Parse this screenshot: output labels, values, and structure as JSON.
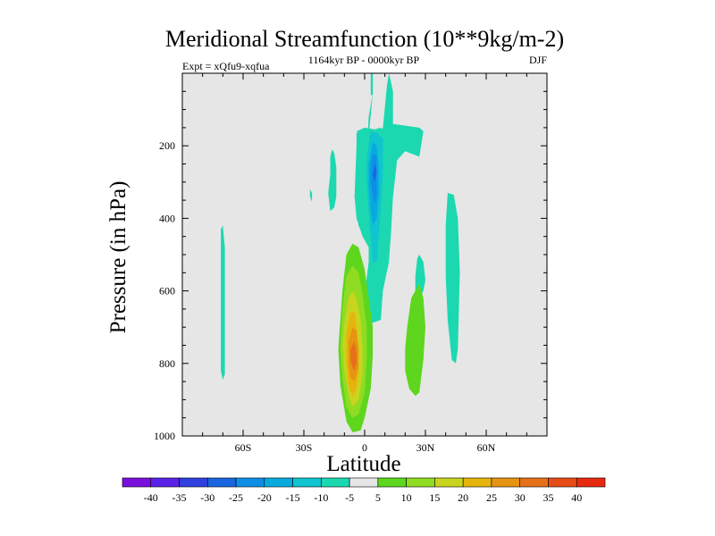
{
  "chart_data": {
    "type": "heatmap",
    "title": "Meridional Streamfunction (10**9kg/m-2)",
    "subtitle_left": "Expt = xQfu9-xqfua",
    "subtitle_center": "1164kyr BP - 0000kyr BP",
    "subtitle_right": "DJF",
    "xlabel": "Latitude",
    "ylabel": "Pressure (in hPa)",
    "xlim": [
      -90,
      90
    ],
    "ylim": [
      1000,
      0
    ],
    "x_ticks": [
      {
        "value": -60,
        "label": "60S"
      },
      {
        "value": -30,
        "label": "30S"
      },
      {
        "value": 0,
        "label": "0"
      },
      {
        "value": 30,
        "label": "30N"
      },
      {
        "value": 60,
        "label": "60N"
      }
    ],
    "y_ticks": [
      {
        "value": 200,
        "label": "200"
      },
      {
        "value": 400,
        "label": "400"
      },
      {
        "value": 600,
        "label": "600"
      },
      {
        "value": 800,
        "label": "800"
      },
      {
        "value": 1000,
        "label": "1000"
      }
    ],
    "background_color": "#e6e6e6",
    "colorbar": {
      "labels": [
        "-40",
        "-35",
        "-30",
        "-25",
        "-20",
        "-15",
        "-10",
        "-5",
        "5",
        "10",
        "15",
        "20",
        "25",
        "30",
        "35",
        "40"
      ],
      "colors": [
        "#7a10dc",
        "#5a22e6",
        "#2f40dc",
        "#1a66e0",
        "#0f8ee6",
        "#08aade",
        "#10c4d0",
        "#1cd8b0",
        "#e6e6e6",
        "#5ed61e",
        "#90dc22",
        "#c8d41e",
        "#e6b40c",
        "#e69412",
        "#e6701a",
        "#e64c18",
        "#e62a10"
      ]
    },
    "contour_regions": [
      {
        "level": -5,
        "points": [
          [
            4,
            55
          ],
          [
            2,
            120
          ],
          [
            1,
            230
          ],
          [
            2,
            400
          ],
          [
            2,
            520
          ],
          [
            0,
            610
          ],
          [
            3,
            690
          ],
          [
            8,
            680
          ],
          [
            9,
            600
          ],
          [
            12,
            520
          ],
          [
            13,
            440
          ],
          [
            14,
            340
          ],
          [
            16,
            240
          ],
          [
            20,
            215
          ],
          [
            27,
            230
          ],
          [
            29,
            160
          ],
          [
            27,
            150
          ],
          [
            14,
            140
          ],
          [
            14,
            50
          ],
          [
            12,
            0
          ],
          [
            11,
            35
          ],
          [
            9,
            150
          ],
          [
            7,
            165
          ],
          [
            4,
            155
          ],
          [
            -1,
            160
          ],
          [
            -4,
            165
          ],
          [
            -4,
            200
          ],
          [
            -5,
            340
          ],
          [
            -3,
            420
          ],
          [
            2,
            480
          ],
          [
            2,
            400
          ],
          [
            1,
            230
          ]
        ]
      },
      {
        "level": -5,
        "points": [
          [
            -4,
            160
          ],
          [
            -2,
            175
          ],
          [
            -2,
            300
          ],
          [
            -5,
            340
          ],
          [
            -4,
            400
          ],
          [
            -1,
            450
          ],
          [
            2,
            480
          ],
          [
            4,
            420
          ],
          [
            6,
            300
          ],
          [
            8,
            200
          ],
          [
            10,
            170
          ],
          [
            8,
            150
          ],
          [
            5,
            155
          ],
          [
            0,
            150
          ],
          [
            -4,
            160
          ]
        ]
      },
      {
        "level": -5,
        "points": [
          [
            3,
            0
          ],
          [
            4,
            0
          ],
          [
            4,
            60
          ],
          [
            3,
            60
          ]
        ]
      },
      {
        "level": -5,
        "points": [
          [
            -17,
            230
          ],
          [
            -16,
            210
          ],
          [
            -15,
            220
          ],
          [
            -14,
            260
          ],
          [
            -14,
            340
          ],
          [
            -15,
            370
          ],
          [
            -17,
            380
          ],
          [
            -18,
            330
          ],
          [
            -17,
            280
          ]
        ]
      },
      {
        "level": -5,
        "points": [
          [
            -27,
            320
          ],
          [
            -26,
            330
          ],
          [
            -26,
            355
          ],
          [
            -27,
            340
          ]
        ]
      },
      {
        "level": -5,
        "points": [
          [
            -71,
            430
          ],
          [
            -70,
            420
          ],
          [
            -69,
            480
          ],
          [
            -69,
            700
          ],
          [
            -69,
            830
          ],
          [
            -70,
            845
          ],
          [
            -71,
            820
          ],
          [
            -71,
            600
          ]
        ]
      },
      {
        "level": -5,
        "points": [
          [
            40,
            420
          ],
          [
            41,
            330
          ],
          [
            44,
            335
          ],
          [
            46,
            400
          ],
          [
            47,
            550
          ],
          [
            46,
            760
          ],
          [
            45,
            800
          ],
          [
            43,
            790
          ],
          [
            41,
            680
          ],
          [
            40,
            560
          ]
        ]
      },
      {
        "level": -5,
        "points": [
          [
            26,
            510
          ],
          [
            27,
            500
          ],
          [
            29,
            520
          ],
          [
            30,
            570
          ],
          [
            29,
            600
          ],
          [
            27,
            620
          ],
          [
            25,
            600
          ],
          [
            25,
            560
          ]
        ]
      },
      {
        "level": -10,
        "points": [
          [
            1,
            230
          ],
          [
            3,
            160
          ],
          [
            6,
            165
          ],
          [
            9,
            180
          ],
          [
            9,
            270
          ],
          [
            8,
            370
          ],
          [
            7,
            440
          ],
          [
            6,
            520
          ],
          [
            4,
            520
          ],
          [
            3,
            450
          ],
          [
            2,
            380
          ],
          [
            1,
            300
          ]
        ]
      },
      {
        "level": -15,
        "points": [
          [
            2,
            250
          ],
          [
            4,
            190
          ],
          [
            6,
            200
          ],
          [
            7,
            260
          ],
          [
            7,
            330
          ],
          [
            6,
            400
          ],
          [
            4,
            420
          ],
          [
            3,
            380
          ],
          [
            2,
            310
          ]
        ]
      },
      {
        "level": -20,
        "points": [
          [
            3,
            270
          ],
          [
            4,
            220
          ],
          [
            6,
            230
          ],
          [
            6,
            290
          ],
          [
            6,
            340
          ],
          [
            5,
            360
          ],
          [
            4,
            340
          ],
          [
            3,
            300
          ]
        ]
      },
      {
        "level": -25,
        "points": [
          [
            4,
            280
          ],
          [
            5,
            250
          ],
          [
            6,
            270
          ],
          [
            5,
            300
          ]
        ]
      },
      {
        "level": 5,
        "points": [
          [
            -11,
            600
          ],
          [
            -9,
            500
          ],
          [
            -6,
            470
          ],
          [
            -3,
            480
          ],
          [
            0,
            540
          ],
          [
            2,
            620
          ],
          [
            4,
            700
          ],
          [
            4,
            780
          ],
          [
            3,
            870
          ],
          [
            0,
            950
          ],
          [
            -2,
            985
          ],
          [
            -6,
            990
          ],
          [
            -9,
            960
          ],
          [
            -12,
            860
          ],
          [
            -13,
            760
          ],
          [
            -12,
            680
          ]
        ]
      },
      {
        "level": 5,
        "points": [
          [
            20,
            760
          ],
          [
            21,
            700
          ],
          [
            23,
            620
          ],
          [
            27,
            580
          ],
          [
            29,
            620
          ],
          [
            30,
            700
          ],
          [
            29,
            790
          ],
          [
            27,
            880
          ],
          [
            25,
            890
          ],
          [
            22,
            870
          ],
          [
            20,
            820
          ]
        ]
      },
      {
        "level": 10,
        "points": [
          [
            -11,
            650
          ],
          [
            -9,
            560
          ],
          [
            -6,
            530
          ],
          [
            -3,
            550
          ],
          [
            -1,
            610
          ],
          [
            1,
            700
          ],
          [
            1,
            790
          ],
          [
            0,
            880
          ],
          [
            -3,
            940
          ],
          [
            -6,
            950
          ],
          [
            -9,
            920
          ],
          [
            -11,
            840
          ],
          [
            -12,
            760
          ]
        ]
      },
      {
        "level": 15,
        "points": [
          [
            -10,
            690
          ],
          [
            -8,
            620
          ],
          [
            -6,
            600
          ],
          [
            -4,
            620
          ],
          [
            -2,
            680
          ],
          [
            -1,
            750
          ],
          [
            -1,
            830
          ],
          [
            -3,
            900
          ],
          [
            -6,
            920
          ],
          [
            -8,
            890
          ],
          [
            -10,
            820
          ],
          [
            -11,
            750
          ]
        ]
      },
      {
        "level": 20,
        "points": [
          [
            -9,
            720
          ],
          [
            -7,
            660
          ],
          [
            -5,
            660
          ],
          [
            -4,
            700
          ],
          [
            -3,
            760
          ],
          [
            -3,
            820
          ],
          [
            -4,
            870
          ],
          [
            -6,
            890
          ],
          [
            -8,
            860
          ],
          [
            -9,
            800
          ]
        ]
      },
      {
        "level": 25,
        "points": [
          [
            -8,
            740
          ],
          [
            -6,
            700
          ],
          [
            -4,
            710
          ],
          [
            -3,
            760
          ],
          [
            -3,
            810
          ],
          [
            -5,
            850
          ],
          [
            -7,
            840
          ],
          [
            -8,
            800
          ]
        ]
      },
      {
        "level": 30,
        "points": [
          [
            -7,
            760
          ],
          [
            -5,
            740
          ],
          [
            -4,
            770
          ],
          [
            -4,
            800
          ],
          [
            -5,
            820
          ],
          [
            -6,
            810
          ],
          [
            -7,
            790
          ]
        ]
      }
    ]
  }
}
